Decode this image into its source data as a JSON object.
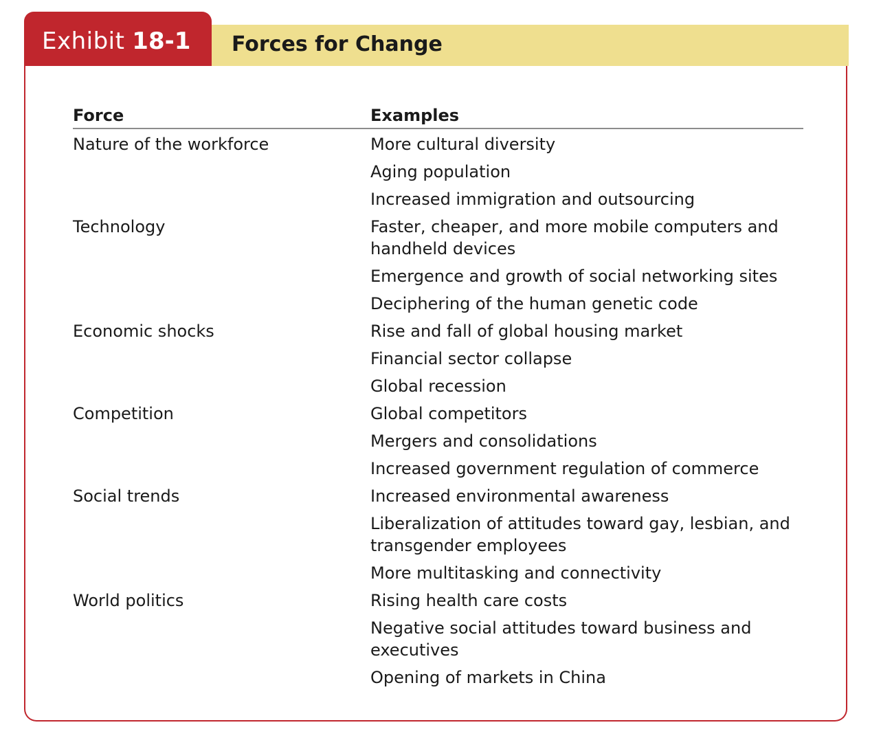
{
  "exhibit": {
    "label": "Exhibit",
    "number": "18-1",
    "title": "Forces for Change"
  },
  "columns": {
    "force": "Force",
    "examples": "Examples"
  },
  "rows": [
    {
      "force": "Nature of the workforce",
      "examples": [
        "More cultural diversity",
        "Aging population",
        "Increased immigration and outsourcing"
      ]
    },
    {
      "force": "Technology",
      "examples": [
        "Faster, cheaper, and more mobile computers and handheld devices",
        "Emergence and growth of social networking sites",
        "Deciphering of the human genetic code"
      ]
    },
    {
      "force": "Economic shocks",
      "examples": [
        "Rise and fall of global housing market",
        "Financial sector collapse",
        "Global recession"
      ]
    },
    {
      "force": "Competition",
      "examples": [
        "Global competitors",
        "Mergers and consolidations",
        "Increased government regulation of commerce"
      ]
    },
    {
      "force": "Social trends",
      "examples": [
        "Increased environmental awareness",
        "Liberalization of attitudes toward gay, lesbian, and transgender employees",
        "More multitasking and connectivity"
      ]
    },
    {
      "force": "World politics",
      "examples": [
        "Rising health care costs",
        "Negative social attitudes toward business and executives",
        "Opening of markets in China"
      ]
    }
  ],
  "colors": {
    "accent_red": "#c0262d",
    "header_band_yellow": "#efdf8f",
    "rule_gray": "#8c8c8c"
  }
}
